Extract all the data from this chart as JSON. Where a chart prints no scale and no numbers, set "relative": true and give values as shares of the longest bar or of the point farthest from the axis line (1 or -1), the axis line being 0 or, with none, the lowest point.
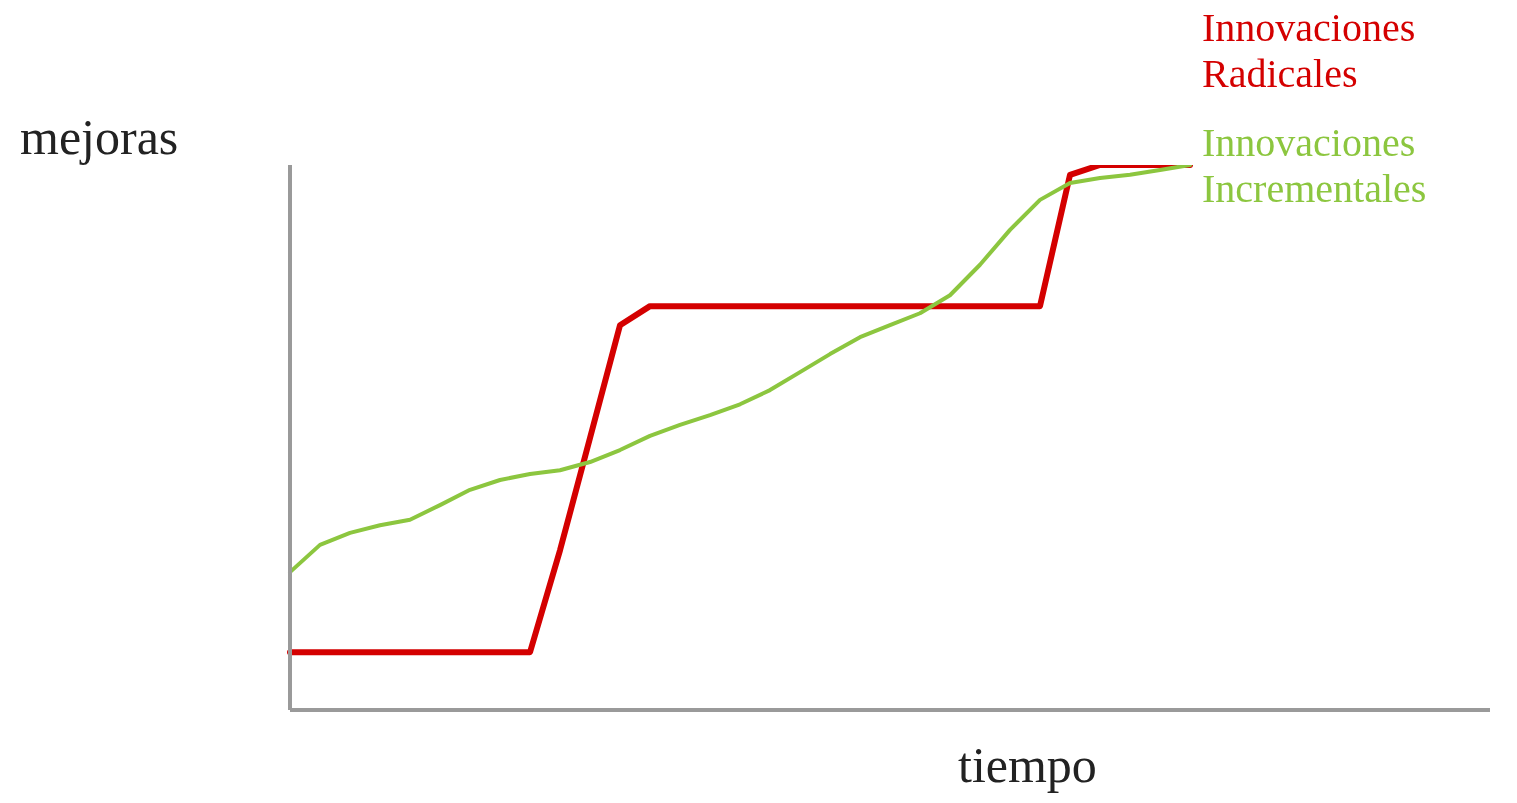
{
  "chart_data": {
    "type": "line",
    "relative": true,
    "xlabel": "tiempo",
    "ylabel": "mejoras",
    "categories": [
      null,
      null,
      null,
      null,
      null,
      null,
      null,
      null,
      null,
      null,
      null,
      null,
      null,
      null,
      null,
      null,
      null,
      null,
      null,
      null,
      null,
      null,
      null,
      null,
      null,
      null,
      null,
      null,
      null,
      null,
      null,
      null,
      null,
      null,
      null,
      null,
      null,
      null,
      null,
      null,
      null
    ],
    "tick_labels": false,
    "grid": false,
    "legend": false,
    "marker": "none",
    "line_style": "solid",
    "series": [
      {
        "name": "Innovaciones Radicales",
        "color": "#d40000",
        "values": [
          0.106,
          0.106,
          0.106,
          0.106,
          0.106,
          0.106,
          0.106,
          0.106,
          0.106,
          0.293,
          0.499,
          0.706,
          0.741,
          0.741,
          0.741,
          0.741,
          0.741,
          0.741,
          0.741,
          0.741,
          0.741,
          0.741,
          0.741,
          0.741,
          0.741,
          0.741,
          0.982,
          1,
          1,
          1,
          1,
          null,
          null,
          null,
          null,
          null,
          null,
          null,
          null,
          null,
          null
        ]
      },
      {
        "name": "Innovaciones Incrementales",
        "color": "#8cc63f",
        "values": [
          0.253,
          0.303,
          0.325,
          0.339,
          0.349,
          0.376,
          0.404,
          0.422,
          0.433,
          0.44,
          0.455,
          0.477,
          0.503,
          0.523,
          0.541,
          0.561,
          0.587,
          0.62,
          0.653,
          0.684,
          0.706,
          0.728,
          0.761,
          0.817,
          0.881,
          0.936,
          0.967,
          0.976,
          0.982,
          0.991,
          1,
          null,
          null,
          null,
          null,
          null,
          null,
          null,
          null,
          null,
          null
        ]
      }
    ]
  }
}
